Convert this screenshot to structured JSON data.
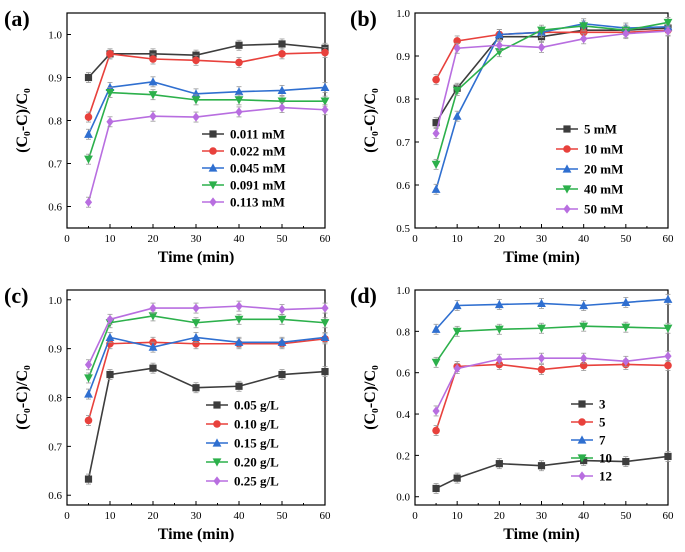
{
  "colors": {
    "s1": "#3d3d3d",
    "s2": "#e8413c",
    "s3": "#2f6fd0",
    "s4": "#2cb04b",
    "s5": "#b86ee0"
  },
  "chart_data": [
    {
      "type": "line",
      "panel_label": "(a)",
      "xlabel": "Time (min)",
      "ylabel": "(C₀-C)/C₀",
      "xlim": [
        0,
        60
      ],
      "ylim": [
        0.55,
        1.05
      ],
      "xticks": [
        0,
        10,
        20,
        30,
        40,
        50,
        60
      ],
      "yticks": [
        0.6,
        0.7,
        0.8,
        0.9,
        1.0
      ],
      "ytick_labels": [
        "0.6",
        "0.7",
        "0.8",
        "0.9",
        "1.0"
      ],
      "legend_position": "bottom-right",
      "x": [
        5,
        10,
        20,
        30,
        40,
        50,
        60
      ],
      "series": [
        {
          "name": "0.011 mM",
          "marker": "square",
          "values": [
            0.9,
            0.955,
            0.955,
            0.952,
            0.975,
            0.978,
            0.968
          ]
        },
        {
          "name": "0.022 mM",
          "marker": "circle",
          "values": [
            0.808,
            0.955,
            0.943,
            0.94,
            0.935,
            0.955,
            0.958
          ]
        },
        {
          "name": "0.045 mM",
          "marker": "triangle-up",
          "values": [
            0.768,
            0.877,
            0.89,
            0.862,
            0.867,
            0.87,
            0.877
          ]
        },
        {
          "name": "0.091 mM",
          "marker": "triangle-down",
          "values": [
            0.71,
            0.865,
            0.86,
            0.848,
            0.848,
            0.845,
            0.845
          ]
        },
        {
          "name": "0.113 mM",
          "marker": "diamond",
          "values": [
            0.61,
            0.797,
            0.81,
            0.808,
            0.82,
            0.83,
            0.825
          ]
        }
      ]
    },
    {
      "type": "line",
      "panel_label": "(b)",
      "xlabel": "Time (min)",
      "ylabel": "(C₀-C)/C₀",
      "xlim": [
        0,
        60
      ],
      "ylim": [
        0.5,
        1.0
      ],
      "xticks": [
        0,
        10,
        20,
        30,
        40,
        50,
        60
      ],
      "yticks": [
        0.5,
        0.6,
        0.7,
        0.8,
        0.9,
        1.0
      ],
      "ytick_labels": [
        "0.5",
        "0.6",
        "0.7",
        "0.8",
        "0.9",
        "1.0"
      ],
      "legend_position": "bottom-right",
      "x": [
        5,
        10,
        20,
        30,
        40,
        50,
        60
      ],
      "series": [
        {
          "name": "5 mM",
          "marker": "square",
          "values": [
            0.745,
            0.825,
            0.945,
            0.945,
            0.96,
            0.96,
            0.965
          ]
        },
        {
          "name": "10 mM",
          "marker": "circle",
          "values": [
            0.845,
            0.935,
            0.95,
            0.955,
            0.955,
            0.955,
            0.96
          ]
        },
        {
          "name": "20 mM",
          "marker": "triangle-up",
          "values": [
            0.59,
            0.76,
            0.95,
            0.955,
            0.975,
            0.965,
            0.968
          ]
        },
        {
          "name": "40 mM",
          "marker": "triangle-down",
          "values": [
            0.648,
            0.82,
            0.91,
            0.96,
            0.97,
            0.96,
            0.978
          ]
        },
        {
          "name": "50 mM",
          "marker": "diamond",
          "values": [
            0.72,
            0.918,
            0.925,
            0.92,
            0.94,
            0.952,
            0.958
          ]
        }
      ]
    },
    {
      "type": "line",
      "panel_label": "(c)",
      "xlabel": "Time (min)",
      "ylabel": "(C₀-C)/C₀",
      "xlim": [
        0,
        60
      ],
      "ylim": [
        0.58,
        1.02
      ],
      "xticks": [
        0,
        10,
        20,
        30,
        40,
        50,
        60
      ],
      "yticks": [
        0.6,
        0.7,
        0.8,
        0.9,
        1.0
      ],
      "ytick_labels": [
        "0.6",
        "0.7",
        "0.8",
        "0.9",
        "1.0"
      ],
      "legend_position": "bottom-right",
      "x": [
        5,
        10,
        20,
        30,
        40,
        50,
        60
      ],
      "series": [
        {
          "name": "0.05 g/L",
          "marker": "square",
          "values": [
            0.633,
            0.847,
            0.86,
            0.82,
            0.823,
            0.847,
            0.853
          ]
        },
        {
          "name": "0.10 g/L",
          "marker": "circle",
          "values": [
            0.753,
            0.91,
            0.913,
            0.91,
            0.91,
            0.91,
            0.92
          ]
        },
        {
          "name": "0.15 g/L",
          "marker": "triangle-up",
          "values": [
            0.807,
            0.923,
            0.903,
            0.923,
            0.913,
            0.913,
            0.923
          ]
        },
        {
          "name": "0.20 g/L",
          "marker": "triangle-down",
          "values": [
            0.84,
            0.953,
            0.967,
            0.953,
            0.96,
            0.96,
            0.953
          ]
        },
        {
          "name": "0.25 g/L",
          "marker": "diamond",
          "values": [
            0.867,
            0.96,
            0.983,
            0.983,
            0.987,
            0.98,
            0.983
          ]
        }
      ]
    },
    {
      "type": "line",
      "panel_label": "(d)",
      "xlabel": "Time (min)",
      "ylabel": "(C₀-C)/C₀",
      "xlim": [
        0,
        60
      ],
      "ylim": [
        -0.04,
        1.0
      ],
      "xticks": [
        0,
        10,
        20,
        30,
        40,
        50,
        60
      ],
      "yticks": [
        0.0,
        0.2,
        0.4,
        0.6,
        0.8,
        1.0
      ],
      "ytick_labels": [
        "0.0",
        "0.2",
        "0.4",
        "0.6",
        "0.8",
        "1.0"
      ],
      "legend_position": "bottom-right",
      "x": [
        5,
        10,
        20,
        30,
        40,
        50,
        60
      ],
      "series": [
        {
          "name": "3",
          "marker": "square",
          "values": [
            0.04,
            0.09,
            0.16,
            0.15,
            0.175,
            0.17,
            0.195
          ]
        },
        {
          "name": "5",
          "marker": "circle",
          "values": [
            0.32,
            0.63,
            0.64,
            0.615,
            0.635,
            0.64,
            0.635
          ]
        },
        {
          "name": "7",
          "marker": "triangle-up",
          "values": [
            0.81,
            0.925,
            0.93,
            0.935,
            0.925,
            0.94,
            0.955
          ]
        },
        {
          "name": "10",
          "marker": "triangle-down",
          "values": [
            0.65,
            0.8,
            0.81,
            0.815,
            0.825,
            0.82,
            0.815
          ]
        },
        {
          "name": "12",
          "marker": "diamond",
          "values": [
            0.415,
            0.62,
            0.665,
            0.67,
            0.67,
            0.655,
            0.68
          ]
        }
      ]
    }
  ]
}
